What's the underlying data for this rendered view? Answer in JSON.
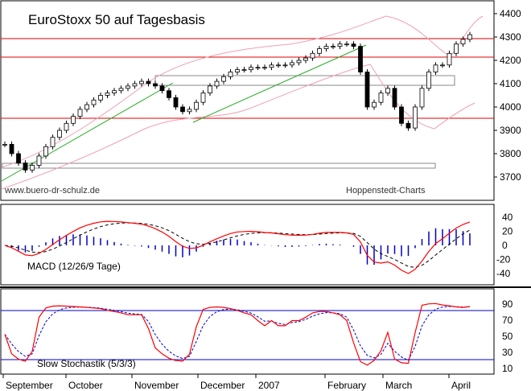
{
  "chart_data": [
    {
      "type": "candlestick",
      "title": "EuroStoxx 50 auf Tagesbasis",
      "source_left": "www.buero-dr-schulz.de",
      "source_right": "Hoppenstedt-Charts",
      "ylim": [
        3600,
        4420
      ],
      "yticks": [
        3700,
        3800,
        3900,
        4000,
        4100,
        4200,
        4300,
        4400
      ],
      "horizontal_lines": [
        4280,
        4200,
        3930
      ],
      "x_labels": [
        "September",
        "October",
        "November",
        "December",
        "2007",
        "February",
        "March",
        "April"
      ],
      "close_series_approx": [
        3840,
        3800,
        3760,
        3730,
        3750,
        3790,
        3830,
        3870,
        3900,
        3930,
        3960,
        3990,
        4010,
        4030,
        4050,
        4060,
        4070,
        4080,
        4090,
        4100,
        4110,
        4100,
        4090,
        4070,
        4040,
        4000,
        3980,
        3990,
        4020,
        4060,
        4090,
        4110,
        4130,
        4150,
        4160,
        4160,
        4170,
        4170,
        4170,
        4180,
        4180,
        4180,
        4190,
        4200,
        4210,
        4230,
        4250,
        4260,
        4260,
        4270,
        4270,
        4260,
        4150,
        4000,
        4020,
        4060,
        4080,
        4000,
        3930,
        3910,
        4000,
        4080,
        4150,
        4180,
        4180,
        4230,
        4270,
        4290,
        4310
      ]
    },
    {
      "type": "line",
      "title": "MACD (12/26/9 Tage)",
      "ylim": [
        -55,
        55
      ],
      "yticks": [
        40,
        20,
        0,
        -20,
        -40
      ],
      "series": [
        {
          "name": "MACD",
          "color": "#ff0000"
        },
        {
          "name": "Signal",
          "color": "#000000"
        },
        {
          "name": "Histogram",
          "color": "#0000cc"
        }
      ]
    },
    {
      "type": "line",
      "title": "Slow Stochastik (5/3/3)",
      "ylim": [
        5,
        100
      ],
      "yticks": [
        90,
        70,
        50,
        30,
        10
      ],
      "horizontal_lines": [
        80,
        20
      ],
      "series": [
        {
          "name": "%K",
          "color": "#ff0000"
        },
        {
          "name": "%D",
          "color": "#0000cc"
        }
      ]
    }
  ]
}
